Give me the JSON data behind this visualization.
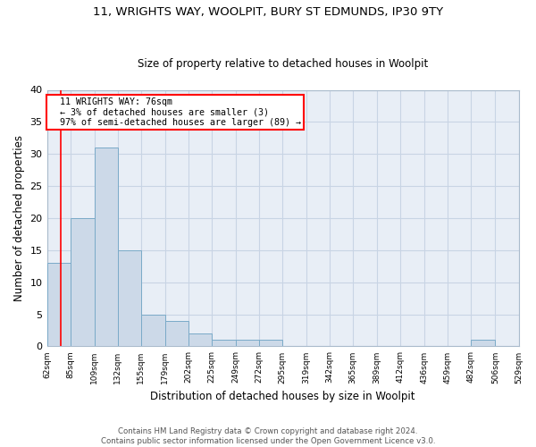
{
  "title_line1": "11, WRIGHTS WAY, WOOLPIT, BURY ST EDMUNDS, IP30 9TY",
  "title_line2": "Size of property relative to detached houses in Woolpit",
  "xlabel": "Distribution of detached houses by size in Woolpit",
  "ylabel": "Number of detached properties",
  "bin_edges": [
    62,
    85,
    109,
    132,
    155,
    179,
    202,
    225,
    249,
    272,
    295,
    319,
    342,
    365,
    389,
    412,
    436,
    459,
    482,
    506,
    529
  ],
  "bar_heights": [
    13,
    20,
    31,
    15,
    5,
    4,
    2,
    1,
    1,
    1,
    0,
    0,
    0,
    0,
    0,
    0,
    0,
    0,
    1,
    0
  ],
  "bar_color": "#ccd9e8",
  "bar_edge_color": "#7aaac8",
  "grid_color": "#c8d4e4",
  "bg_color": "#e8eef6",
  "property_value": 76,
  "annotation_text": "  11 WRIGHTS WAY: 76sqm\n  ← 3% of detached houses are smaller (3)\n  97% of semi-detached houses are larger (89) →",
  "annotation_box_color": "white",
  "annotation_box_edge_color": "red",
  "red_line_color": "red",
  "ylim": [
    0,
    40
  ],
  "yticks": [
    0,
    5,
    10,
    15,
    20,
    25,
    30,
    35,
    40
  ],
  "footer_line1": "Contains HM Land Registry data © Crown copyright and database right 2024.",
  "footer_line2": "Contains public sector information licensed under the Open Government Licence v3.0."
}
